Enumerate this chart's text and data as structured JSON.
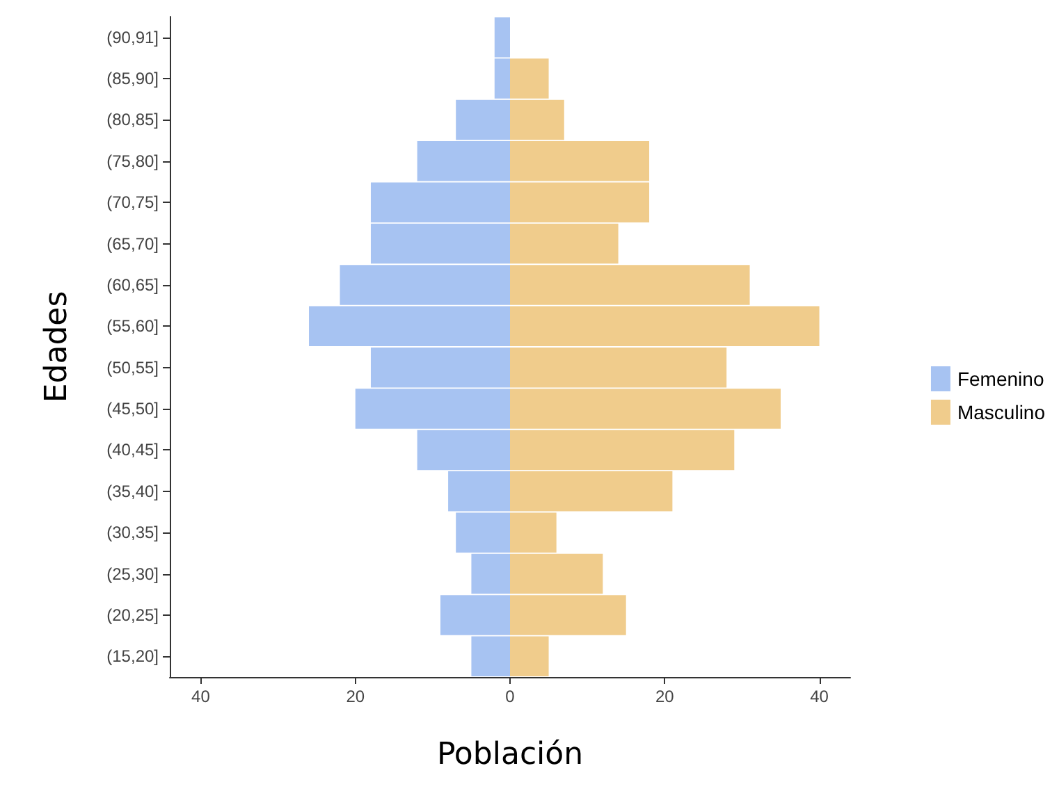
{
  "chart_data": {
    "type": "bar",
    "orientation": "horizontal",
    "stacked": true,
    "xlabel": "Población",
    "ylabel": "Edades",
    "categories": [
      "(90,91]",
      "(85,90]",
      "(80,85]",
      "(75,80]",
      "(70,75]",
      "(65,70]",
      "(60,65]",
      "(55,60]",
      "(50,55]",
      "(45,50]",
      "(40,45]",
      "(35,40]",
      "(30,35]",
      "(25,30]",
      "(20,25]",
      "(15,20]"
    ],
    "series": [
      {
        "name": "Femenino",
        "color": "#a7c3f2",
        "values": [
          -2,
          -2,
          -7,
          -12,
          -18,
          -18,
          -22,
          -26,
          -18,
          -20,
          -12,
          -8,
          -7,
          -5,
          -9,
          -5
        ]
      },
      {
        "name": "Masculino",
        "color": "#f0cc8c",
        "values": [
          0,
          5,
          7,
          18,
          18,
          14,
          31,
          40,
          28,
          35,
          29,
          21,
          6,
          12,
          15,
          5
        ]
      }
    ],
    "xlim": [
      -44,
      44
    ],
    "xticks": [
      {
        "value": -40,
        "label": "40"
      },
      {
        "value": -20,
        "label": "20"
      },
      0,
      20,
      40
    ],
    "grid": false,
    "legend": "right"
  }
}
